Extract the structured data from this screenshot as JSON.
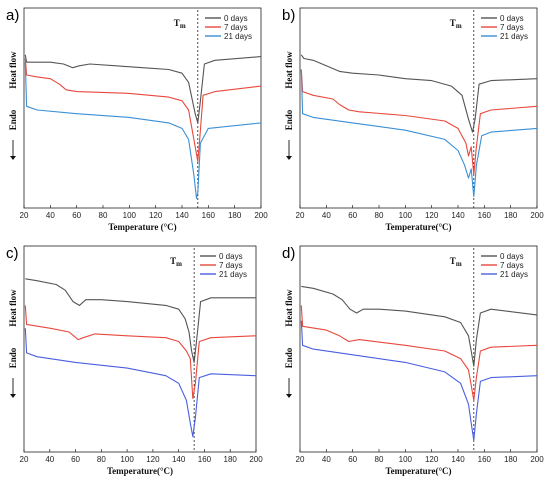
{
  "colors": {
    "s0": "#555555",
    "s7": "#e8483c",
    "s21": "#3a8fd6",
    "s21_alt": "#4a5fe0"
  },
  "chart_data": [
    {
      "type": "line",
      "panel_label": "a)",
      "xlabel": "Temperature (°C)",
      "ylabel_top": "Heat flow",
      "ylabel_bottom": "Endo",
      "marker_label": "Tm",
      "marker_x": 152,
      "xlim": [
        20,
        200
      ],
      "xticks": [
        20,
        40,
        60,
        80,
        100,
        120,
        140,
        160,
        180,
        200
      ],
      "legend": [
        "0 days",
        "7 days",
        "21 days"
      ],
      "legend_position": "top-right",
      "series": [
        {
          "name": "0 days",
          "color": "#555555",
          "points": [
            [
              21,
              0.8
            ],
            [
              22,
              0.76
            ],
            [
              25,
              0.76
            ],
            [
              40,
              0.76
            ],
            [
              50,
              0.75
            ],
            [
              57,
              0.73
            ],
            [
              62,
              0.74
            ],
            [
              70,
              0.75
            ],
            [
              90,
              0.74
            ],
            [
              110,
              0.73
            ],
            [
              130,
              0.72
            ],
            [
              140,
              0.7
            ],
            [
              145,
              0.65
            ],
            [
              150,
              0.48
            ],
            [
              152,
              0.43
            ],
            [
              154,
              0.55
            ],
            [
              157,
              0.75
            ],
            [
              165,
              0.77
            ],
            [
              200,
              0.79
            ]
          ]
        },
        {
          "name": "7 days",
          "color": "#e8483c",
          "points": [
            [
              21,
              0.78
            ],
            [
              22,
              0.69
            ],
            [
              30,
              0.68
            ],
            [
              40,
              0.67
            ],
            [
              47,
              0.64
            ],
            [
              52,
              0.61
            ],
            [
              60,
              0.6
            ],
            [
              100,
              0.59
            ],
            [
              130,
              0.57
            ],
            [
              140,
              0.55
            ],
            [
              145,
              0.5
            ],
            [
              150,
              0.3
            ],
            [
              152,
              0.22
            ],
            [
              153,
              0.3
            ],
            [
              156,
              0.58
            ],
            [
              165,
              0.6
            ],
            [
              200,
              0.63
            ]
          ]
        },
        {
          "name": "21 days",
          "color": "#3a8fd6",
          "points": [
            [
              21,
              0.76
            ],
            [
              22,
              0.52
            ],
            [
              30,
              0.5
            ],
            [
              60,
              0.48
            ],
            [
              100,
              0.46
            ],
            [
              130,
              0.43
            ],
            [
              140,
              0.4
            ],
            [
              145,
              0.34
            ],
            [
              149,
              0.15
            ],
            [
              151,
              0.02
            ],
            [
              152,
              0.05
            ],
            [
              154,
              0.32
            ],
            [
              160,
              0.4
            ],
            [
              200,
              0.43
            ]
          ]
        }
      ]
    },
    {
      "type": "line",
      "panel_label": "b)",
      "xlabel": "Temperature(°C)",
      "ylabel_top": "Heat flow",
      "ylabel_bottom": "Endo",
      "marker_label": "Tm",
      "marker_x": 152,
      "xlim": [
        20,
        200
      ],
      "xticks": [
        20,
        40,
        60,
        80,
        100,
        120,
        140,
        160,
        180,
        200
      ],
      "legend": [
        "0 days",
        "7 days",
        "21 days"
      ],
      "legend_position": "top-right",
      "series": [
        {
          "name": "0 days",
          "color": "#555555",
          "points": [
            [
              21,
              0.8
            ],
            [
              23,
              0.78
            ],
            [
              30,
              0.77
            ],
            [
              40,
              0.74
            ],
            [
              50,
              0.71
            ],
            [
              60,
              0.7
            ],
            [
              80,
              0.69
            ],
            [
              100,
              0.67
            ],
            [
              120,
              0.66
            ],
            [
              135,
              0.63
            ],
            [
              143,
              0.58
            ],
            [
              148,
              0.45
            ],
            [
              151,
              0.38
            ],
            [
              153,
              0.45
            ],
            [
              156,
              0.64
            ],
            [
              165,
              0.66
            ],
            [
              200,
              0.67
            ]
          ]
        },
        {
          "name": "7 days",
          "color": "#e8483c",
          "points": [
            [
              21,
              0.72
            ],
            [
              22,
              0.6
            ],
            [
              30,
              0.58
            ],
            [
              45,
              0.56
            ],
            [
              50,
              0.53
            ],
            [
              57,
              0.5
            ],
            [
              65,
              0.49
            ],
            [
              100,
              0.47
            ],
            [
              130,
              0.44
            ],
            [
              140,
              0.4
            ],
            [
              146,
              0.32
            ],
            [
              148,
              0.25
            ],
            [
              150,
              0.3
            ],
            [
              152,
              0.15
            ],
            [
              154,
              0.3
            ],
            [
              157,
              0.48
            ],
            [
              165,
              0.5
            ],
            [
              200,
              0.52
            ]
          ]
        },
        {
          "name": "21 days",
          "color": "#3a8fd6",
          "points": [
            [
              21,
              0.72
            ],
            [
              22,
              0.48
            ],
            [
              30,
              0.46
            ],
            [
              60,
              0.43
            ],
            [
              100,
              0.39
            ],
            [
              130,
              0.34
            ],
            [
              140,
              0.28
            ],
            [
              145,
              0.2
            ],
            [
              148,
              0.13
            ],
            [
              150,
              0.18
            ],
            [
              152,
              0.03
            ],
            [
              154,
              0.2
            ],
            [
              158,
              0.36
            ],
            [
              165,
              0.38
            ],
            [
              200,
              0.4
            ]
          ]
        }
      ]
    },
    {
      "type": "line",
      "panel_label": "c)",
      "xlabel": "Temperature(°C)",
      "ylabel_top": "Heat flow",
      "ylabel_bottom": "Endo",
      "marker_label": "Tm",
      "marker_x": 152,
      "xlim": [
        20,
        200
      ],
      "xticks": [
        20,
        40,
        60,
        80,
        100,
        120,
        140,
        160,
        180,
        200
      ],
      "legend": [
        "0 days",
        "7 days",
        "21 days"
      ],
      "legend_position": "top-right",
      "series": [
        {
          "name": "0 days",
          "color": "#555555",
          "points": [
            [
              21,
              0.88
            ],
            [
              30,
              0.87
            ],
            [
              45,
              0.85
            ],
            [
              52,
              0.82
            ],
            [
              58,
              0.76
            ],
            [
              63,
              0.74
            ],
            [
              68,
              0.77
            ],
            [
              80,
              0.77
            ],
            [
              100,
              0.76
            ],
            [
              130,
              0.74
            ],
            [
              140,
              0.72
            ],
            [
              145,
              0.67
            ],
            [
              148,
              0.6
            ],
            [
              150,
              0.5
            ],
            [
              152,
              0.44
            ],
            [
              154,
              0.56
            ],
            [
              157,
              0.76
            ],
            [
              165,
              0.78
            ],
            [
              200,
              0.78
            ]
          ]
        },
        {
          "name": "7 days",
          "color": "#e8483c",
          "points": [
            [
              21,
              0.74
            ],
            [
              22,
              0.64
            ],
            [
              40,
              0.62
            ],
            [
              55,
              0.6
            ],
            [
              62,
              0.56
            ],
            [
              66,
              0.57
            ],
            [
              75,
              0.59
            ],
            [
              100,
              0.58
            ],
            [
              130,
              0.57
            ],
            [
              140,
              0.55
            ],
            [
              146,
              0.5
            ],
            [
              149,
              0.46
            ],
            [
              151,
              0.25
            ],
            [
              153,
              0.33
            ],
            [
              156,
              0.55
            ],
            [
              165,
              0.57
            ],
            [
              200,
              0.58
            ]
          ]
        },
        {
          "name": "21 days",
          "color": "#4a5fe0",
          "points": [
            [
              21,
              0.62
            ],
            [
              22,
              0.49
            ],
            [
              30,
              0.47
            ],
            [
              60,
              0.44
            ],
            [
              100,
              0.41
            ],
            [
              130,
              0.37
            ],
            [
              140,
              0.33
            ],
            [
              146,
              0.24
            ],
            [
              149,
              0.12
            ],
            [
              151,
              0.05
            ],
            [
              153,
              0.15
            ],
            [
              156,
              0.36
            ],
            [
              165,
              0.38
            ],
            [
              200,
              0.37
            ]
          ]
        }
      ]
    },
    {
      "type": "line",
      "panel_label": "d)",
      "xlabel": "Temperature(°C)",
      "ylabel_top": "Heat flow",
      "ylabel_bottom": "Endo",
      "marker_label": "Tm",
      "marker_x": 152,
      "xlim": [
        20,
        200
      ],
      "xticks": [
        20,
        40,
        60,
        80,
        100,
        120,
        140,
        160,
        180,
        200
      ],
      "legend": [
        "0 days",
        "7 days",
        "21 days"
      ],
      "legend_position": "top-right",
      "series": [
        {
          "name": "0 days",
          "color": "#555555",
          "points": [
            [
              21,
              0.84
            ],
            [
              30,
              0.83
            ],
            [
              45,
              0.8
            ],
            [
              52,
              0.77
            ],
            [
              58,
              0.72
            ],
            [
              63,
              0.7
            ],
            [
              68,
              0.72
            ],
            [
              80,
              0.72
            ],
            [
              100,
              0.71
            ],
            [
              130,
              0.68
            ],
            [
              142,
              0.65
            ],
            [
              148,
              0.58
            ],
            [
              150,
              0.5
            ],
            [
              152,
              0.42
            ],
            [
              154,
              0.56
            ],
            [
              157,
              0.7
            ],
            [
              165,
              0.72
            ],
            [
              200,
              0.69
            ]
          ]
        },
        {
          "name": "7 days",
          "color": "#e8483c",
          "points": [
            [
              21,
              0.74
            ],
            [
              22,
              0.63
            ],
            [
              40,
              0.61
            ],
            [
              50,
              0.58
            ],
            [
              57,
              0.55
            ],
            [
              65,
              0.56
            ],
            [
              100,
              0.53
            ],
            [
              130,
              0.5
            ],
            [
              142,
              0.46
            ],
            [
              148,
              0.4
            ],
            [
              150,
              0.32
            ],
            [
              152,
              0.24
            ],
            [
              154,
              0.36
            ],
            [
              157,
              0.5
            ],
            [
              165,
              0.52
            ],
            [
              200,
              0.53
            ]
          ]
        },
        {
          "name": "21 days",
          "color": "#4a5fe0",
          "points": [
            [
              21,
              0.66
            ],
            [
              22,
              0.53
            ],
            [
              30,
              0.51
            ],
            [
              60,
              0.48
            ],
            [
              100,
              0.44
            ],
            [
              130,
              0.39
            ],
            [
              142,
              0.33
            ],
            [
              148,
              0.22
            ],
            [
              150,
              0.12
            ],
            [
              152,
              0.03
            ],
            [
              154,
              0.17
            ],
            [
              157,
              0.34
            ],
            [
              165,
              0.36
            ],
            [
              200,
              0.37
            ]
          ]
        }
      ]
    }
  ]
}
